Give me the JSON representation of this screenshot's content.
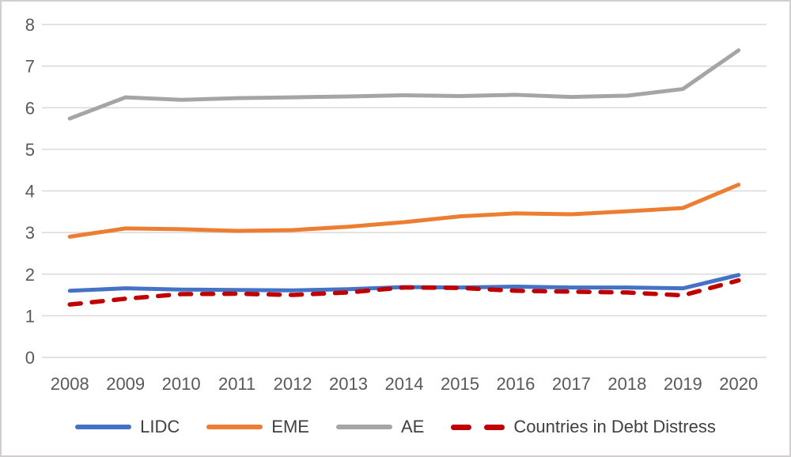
{
  "chart_data": {
    "type": "line",
    "title": "",
    "xlabel": "",
    "ylabel": "",
    "categories": [
      "2008",
      "2009",
      "2010",
      "2011",
      "2012",
      "2013",
      "2014",
      "2015",
      "2016",
      "2017",
      "2018",
      "2019",
      "2020"
    ],
    "y_ticks": [
      0,
      1,
      2,
      3,
      4,
      5,
      6,
      7,
      8
    ],
    "ylim": [
      0,
      8
    ],
    "grid": "horizontal-only",
    "legend_position": "bottom",
    "series": [
      {
        "name": "LIDC",
        "color": "#4472C4",
        "line_style": "solid",
        "values": [
          1.6,
          1.66,
          1.63,
          1.62,
          1.61,
          1.64,
          1.69,
          1.68,
          1.7,
          1.68,
          1.68,
          1.66,
          1.98
        ]
      },
      {
        "name": "EME",
        "color": "#ED7D31",
        "line_style": "solid",
        "values": [
          2.9,
          3.1,
          3.08,
          3.04,
          3.06,
          3.14,
          3.25,
          3.39,
          3.46,
          3.44,
          3.51,
          3.59,
          4.15
        ]
      },
      {
        "name": "AE",
        "color": "#A5A5A5",
        "line_style": "solid",
        "values": [
          5.74,
          6.25,
          6.19,
          6.23,
          6.25,
          6.27,
          6.3,
          6.28,
          6.31,
          6.26,
          6.29,
          6.45,
          7.38
        ]
      },
      {
        "name": "Countries in Debt Distress",
        "color": "#C00000",
        "line_style": "dashed",
        "values": [
          1.27,
          1.41,
          1.52,
          1.53,
          1.5,
          1.56,
          1.68,
          1.67,
          1.6,
          1.58,
          1.56,
          1.49,
          1.85
        ]
      }
    ]
  },
  "colors": {
    "background": "#FFFFFF",
    "gridline": "#D9D9D9",
    "axis_text": "#595959",
    "legend_text": "#404040",
    "frame_border": "#D0CECE"
  }
}
